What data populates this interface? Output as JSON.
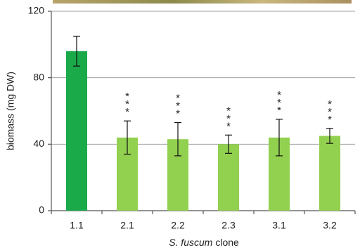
{
  "chart_data": {
    "type": "bar",
    "y_label": "biomass (mg DW)",
    "x_label": [
      "S. fuscum",
      "clone"
    ],
    "categories": [
      "1.1",
      "2.1",
      "2.2",
      "2.3",
      "3.1",
      "3.2"
    ],
    "values": [
      96,
      44,
      43,
      40,
      44,
      45
    ],
    "errors": [
      9,
      10,
      10,
      5.5,
      11,
      4.5
    ],
    "colors": [
      "#1aaa4a",
      "#92d050",
      "#92d050",
      "#92d050",
      "#92d050",
      "#92d050"
    ],
    "significance": [
      null,
      "***",
      "***",
      "***",
      "***",
      "***"
    ],
    "ylim": [
      0,
      120
    ],
    "yticks": [
      0,
      40,
      80,
      120
    ],
    "grid": true
  }
}
